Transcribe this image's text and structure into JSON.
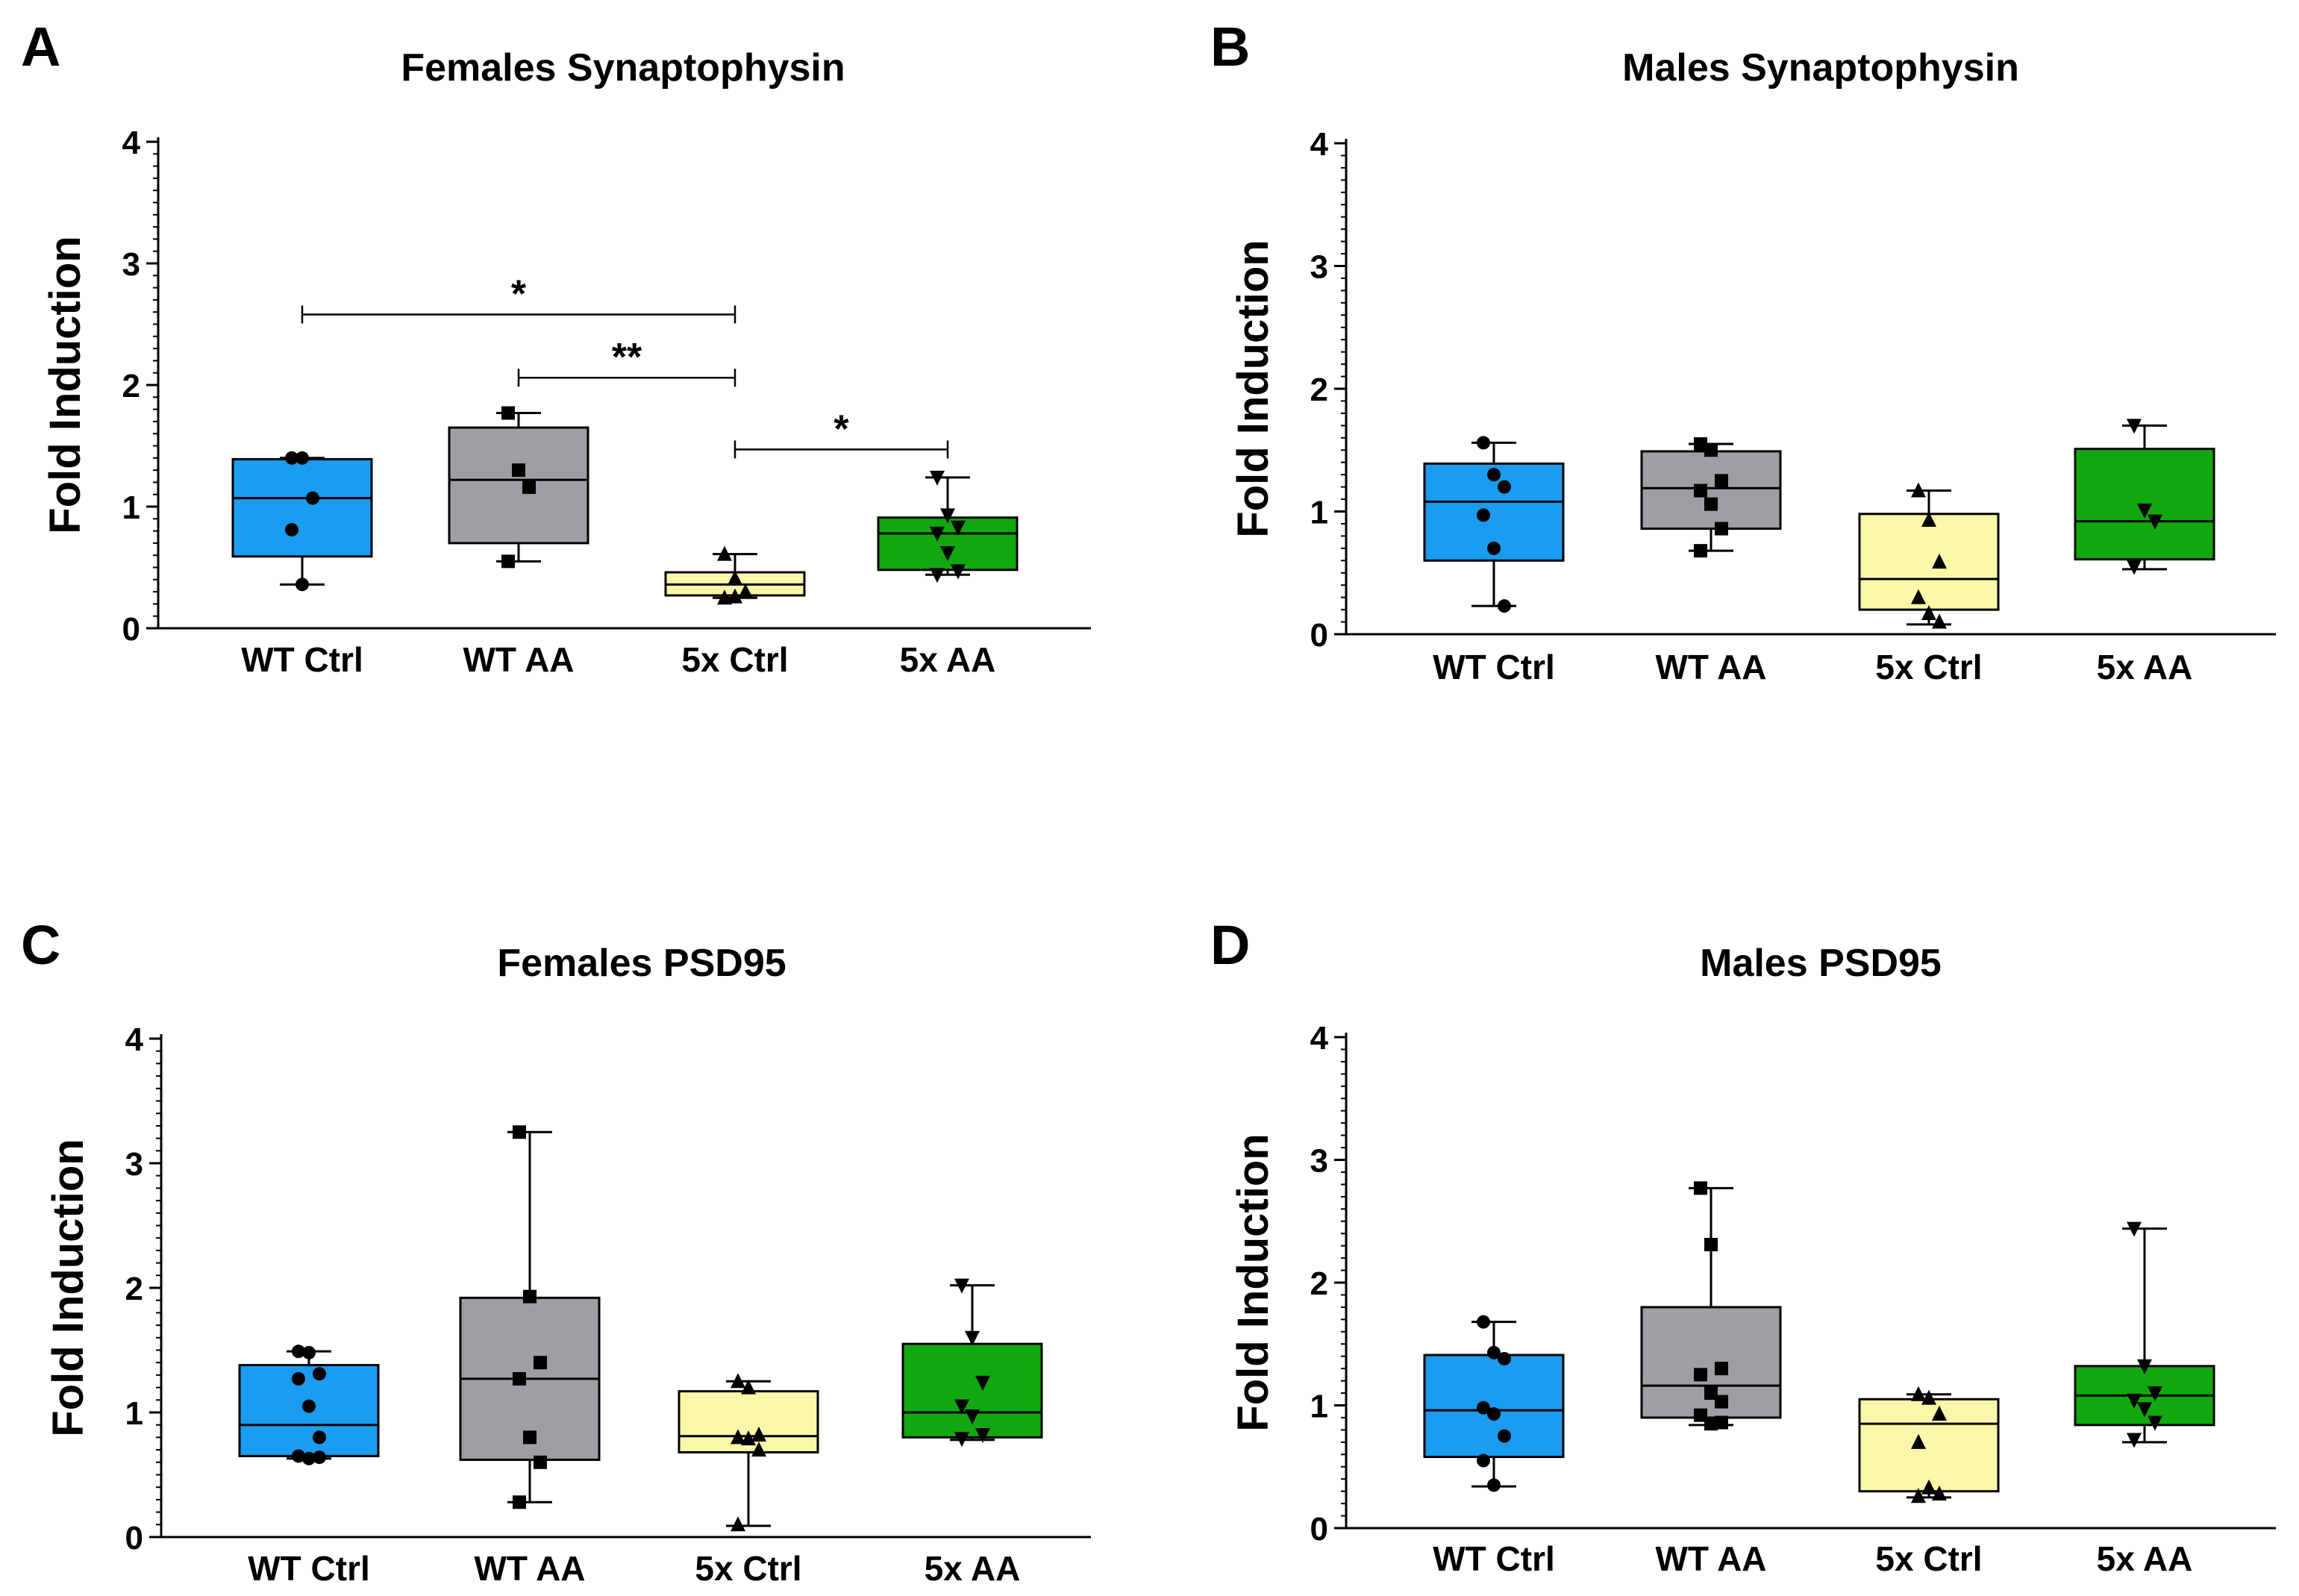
{
  "figure": {
    "background": "#ffffff"
  },
  "colors": {
    "WT Ctrl": "#1a9cf0",
    "WT AA": "#9e9ea3",
    "5x Ctrl": "#fbf7a8",
    "5x AA": "#10a80e"
  },
  "chart_data": [
    {
      "panel": "A",
      "type": "box",
      "title": "Females Synaptophysin",
      "ylabel": "Fold  Induction",
      "ylim": [
        0,
        4
      ],
      "yticks": [
        "0",
        "1",
        "2",
        "3",
        "4"
      ],
      "categories": [
        "WT Ctrl",
        "WT AA",
        "5x Ctrl",
        "5x AA"
      ],
      "boxes": [
        {
          "group": "WT Ctrl",
          "min": 0.36,
          "q1": 0.59,
          "median": 1.07,
          "q3": 1.39,
          "max": 1.4,
          "marker": "circle",
          "points": [
            1.4,
            1.4,
            1.07,
            0.81,
            0.36
          ]
        },
        {
          "group": "WT AA",
          "min": 0.55,
          "q1": 0.7,
          "median": 1.22,
          "q3": 1.65,
          "max": 1.77,
          "marker": "square",
          "points": [
            1.77,
            1.3,
            1.16,
            0.55
          ]
        },
        {
          "group": "5x Ctrl",
          "min": 0.25,
          "q1": 0.27,
          "median": 0.36,
          "q3": 0.46,
          "max": 0.61,
          "marker": "triangle",
          "points": [
            0.61,
            0.41,
            0.3,
            0.25,
            0.26
          ]
        },
        {
          "group": "5x AA",
          "min": 0.44,
          "q1": 0.48,
          "median": 0.78,
          "q3": 0.91,
          "max": 1.24,
          "marker": "triangle-down",
          "points": [
            1.24,
            0.93,
            0.83,
            0.78,
            0.62,
            0.47,
            0.44
          ]
        }
      ],
      "significance": [
        {
          "from": "WT Ctrl",
          "to": "5x Ctrl",
          "y": 2.58,
          "label": "*"
        },
        {
          "from": "WT AA",
          "to": "5x Ctrl",
          "y": 2.06,
          "label": "**"
        },
        {
          "from": "5x Ctrl",
          "to": "5x AA",
          "y": 1.47,
          "label": "*"
        }
      ]
    },
    {
      "panel": "B",
      "type": "box",
      "title": "Males Synaptophysin",
      "ylabel": "Fold  Induction",
      "ylim": [
        0,
        4
      ],
      "yticks": [
        "0",
        "1",
        "2",
        "3",
        "4"
      ],
      "categories": [
        "WT Ctrl",
        "WT AA",
        "5x Ctrl",
        "5x AA"
      ],
      "boxes": [
        {
          "group": "WT Ctrl",
          "min": 0.23,
          "q1": 0.6,
          "median": 1.08,
          "q3": 1.39,
          "max": 1.56,
          "marker": "circle",
          "points": [
            1.56,
            1.3,
            1.2,
            0.97,
            0.7,
            0.23
          ]
        },
        {
          "group": "WT AA",
          "min": 0.68,
          "q1": 0.86,
          "median": 1.19,
          "q3": 1.49,
          "max": 1.55,
          "marker": "square",
          "points": [
            1.55,
            1.5,
            1.25,
            1.17,
            1.06,
            0.86,
            0.68
          ]
        },
        {
          "group": "5x Ctrl",
          "min": 0.08,
          "q1": 0.2,
          "median": 0.45,
          "q3": 0.98,
          "max": 1.17,
          "marker": "triangle",
          "points": [
            1.17,
            0.93,
            0.59,
            0.3,
            0.17,
            0.1
          ]
        },
        {
          "group": "5x AA",
          "min": 0.53,
          "q1": 0.61,
          "median": 0.92,
          "q3": 1.51,
          "max": 1.7,
          "marker": "triangle-down",
          "points": [
            1.7,
            1.01,
            0.92,
            0.55
          ]
        }
      ],
      "significance": []
    },
    {
      "panel": "C",
      "type": "box",
      "title": "Females PSD95",
      "ylabel": "Fold  Induction",
      "ylim": [
        0,
        4
      ],
      "yticks": [
        "0",
        "1",
        "2",
        "3",
        "4"
      ],
      "categories": [
        "WT Ctrl",
        "WT AA",
        "5x Ctrl",
        "5x AA"
      ],
      "boxes": [
        {
          "group": "WT Ctrl",
          "min": 0.63,
          "q1": 0.65,
          "median": 0.9,
          "q3": 1.38,
          "max": 1.49,
          "marker": "circle",
          "points": [
            1.49,
            1.48,
            1.31,
            1.27,
            1.05,
            0.8,
            0.65,
            0.63,
            0.64
          ]
        },
        {
          "group": "WT AA",
          "min": 0.28,
          "q1": 0.62,
          "median": 1.27,
          "q3": 1.92,
          "max": 3.25,
          "marker": "square",
          "points": [
            3.25,
            1.93,
            1.4,
            1.27,
            0.8,
            0.6,
            0.28
          ]
        },
        {
          "group": "5x Ctrl",
          "min": 0.09,
          "q1": 0.68,
          "median": 0.81,
          "q3": 1.17,
          "max": 1.25,
          "marker": "triangle",
          "points": [
            1.25,
            1.2,
            0.82,
            0.8,
            0.79,
            0.7,
            0.1
          ]
        },
        {
          "group": "5x AA",
          "min": 0.78,
          "q1": 0.8,
          "median": 1.0,
          "q3": 1.55,
          "max": 2.02,
          "marker": "triangle-down",
          "points": [
            2.02,
            1.6,
            1.24,
            1.05,
            0.97,
            0.82,
            0.79
          ]
        }
      ],
      "significance": []
    },
    {
      "panel": "D",
      "type": "box",
      "title": "Males PSD95",
      "ylabel": "Fold  Induction",
      "ylim": [
        0,
        4
      ],
      "yticks": [
        "0",
        "1",
        "2",
        "3",
        "4"
      ],
      "categories": [
        "WT Ctrl",
        "WT AA",
        "5x Ctrl",
        "5x AA"
      ],
      "boxes": [
        {
          "group": "WT Ctrl",
          "min": 0.34,
          "q1": 0.58,
          "median": 0.96,
          "q3": 1.41,
          "max": 1.68,
          "marker": "circle",
          "points": [
            1.68,
            1.43,
            1.38,
            0.98,
            0.93,
            0.75,
            0.55,
            0.35
          ]
        },
        {
          "group": "WT AA",
          "min": 0.84,
          "q1": 0.9,
          "median": 1.16,
          "q3": 1.8,
          "max": 2.77,
          "marker": "square",
          "points": [
            2.77,
            2.31,
            1.3,
            1.25,
            1.1,
            1.03,
            0.92,
            0.85,
            0.86
          ]
        },
        {
          "group": "5x Ctrl",
          "min": 0.25,
          "q1": 0.3,
          "median": 0.85,
          "q3": 1.05,
          "max": 1.09,
          "marker": "triangle",
          "points": [
            1.09,
            1.06,
            0.93,
            0.7,
            0.33,
            0.28,
            0.26
          ]
        },
        {
          "group": "5x AA",
          "min": 0.7,
          "q1": 0.84,
          "median": 1.08,
          "q3": 1.32,
          "max": 2.44,
          "marker": "triangle-down",
          "points": [
            2.44,
            1.32,
            1.1,
            1.04,
            0.97,
            0.86,
            0.72
          ]
        }
      ],
      "significance": []
    }
  ]
}
